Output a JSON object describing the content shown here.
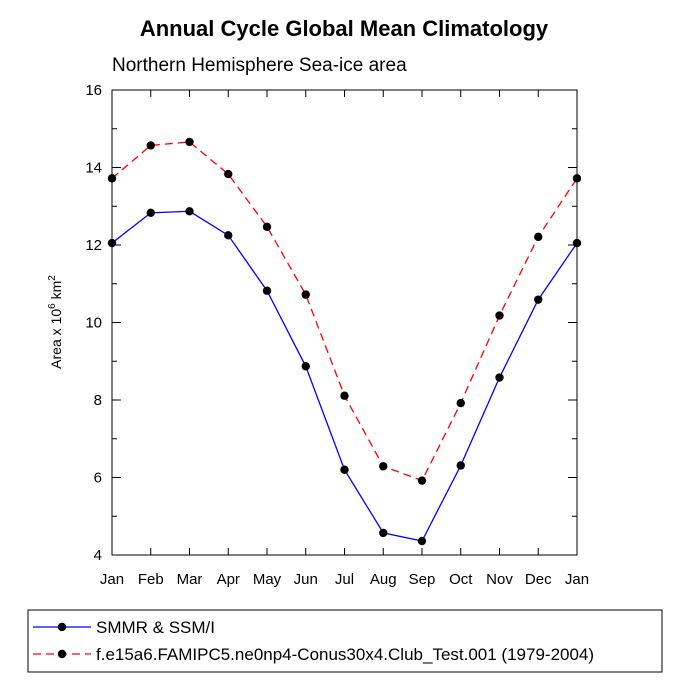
{
  "chart_data": {
    "type": "line",
    "title": "Annual Cycle Global Mean Climatology",
    "subtitle": "Northern Hemisphere Sea-ice area",
    "ylabel": {
      "base": "Area x 10",
      "exp1": "6",
      "mid": " km",
      "exp2": "2"
    },
    "xlabel": "",
    "categories": [
      "Jan",
      "Feb",
      "Mar",
      "Apr",
      "May",
      "Jun",
      "Jul",
      "Aug",
      "Sep",
      "Oct",
      "Nov",
      "Dec",
      "Jan"
    ],
    "ylim": [
      4,
      16
    ],
    "yticks": [
      4,
      6,
      8,
      10,
      12,
      14,
      16
    ],
    "grid": false,
    "legend_position": "bottom",
    "series": [
      {
        "name": "SMMR & SSM/I",
        "color": "#0000ff",
        "dash": "solid",
        "values": [
          12.05,
          12.83,
          12.87,
          12.25,
          10.82,
          8.87,
          6.2,
          4.57,
          4.36,
          6.31,
          8.58,
          10.59,
          12.05
        ]
      },
      {
        "name": "f.e15a6.FAMIPC5.ne0np4-Conus30x4.Club_Test.001 (1979-2004)",
        "color": "#ff0000",
        "dash": "dashed",
        "values": [
          13.72,
          14.57,
          14.66,
          13.83,
          12.47,
          10.72,
          8.11,
          6.29,
          5.92,
          7.92,
          10.18,
          12.21,
          13.72
        ]
      }
    ]
  }
}
